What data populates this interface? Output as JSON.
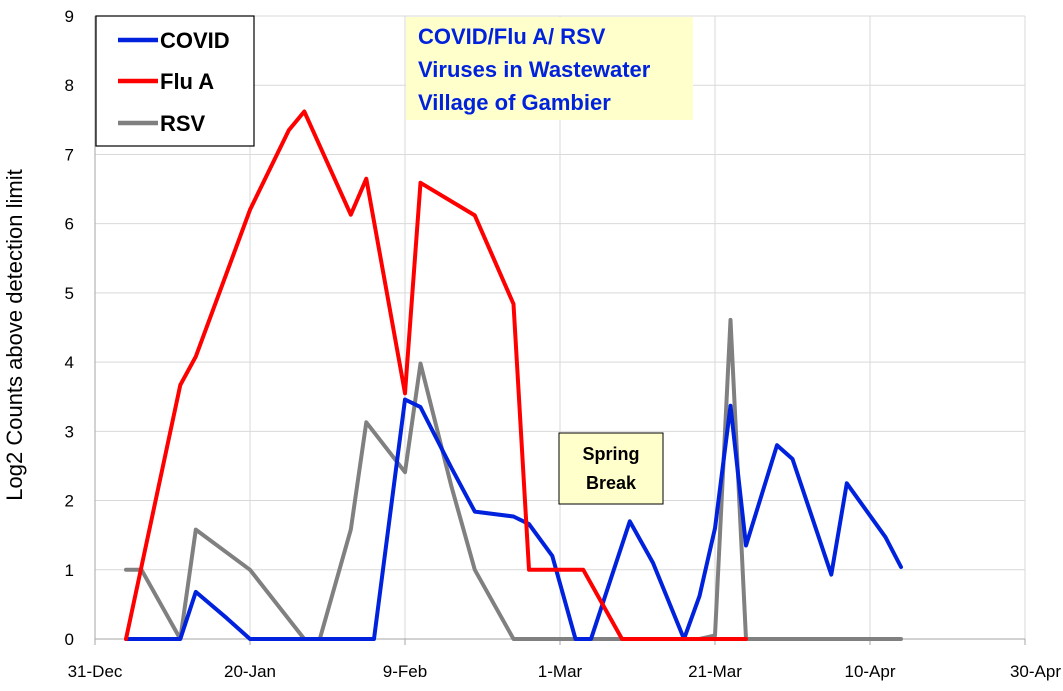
{
  "chart_data": {
    "type": "line",
    "title_lines": [
      "COVID/Flu A/ RSV",
      "Viruses in Wastewater",
      "Village of Gambier"
    ],
    "ylabel": "Log2 Counts above detection limit",
    "xlabel": "",
    "ylim": [
      0,
      9
    ],
    "xlim_days": [
      0,
      120
    ],
    "xticks": [
      {
        "day": 0,
        "label": "31-Dec"
      },
      {
        "day": 20,
        "label": "20-Jan"
      },
      {
        "day": 40,
        "label": "9-Feb"
      },
      {
        "day": 60,
        "label": "1-Mar"
      },
      {
        "day": 80,
        "label": "21-Mar"
      },
      {
        "day": 100,
        "label": "10-Apr"
      },
      {
        "day": 120,
        "label": "30-Apr"
      }
    ],
    "yticks": [
      "0",
      "1",
      "2",
      "3",
      "4",
      "5",
      "6",
      "7",
      "8",
      "9"
    ],
    "grid": true,
    "legend_position": "top-left",
    "annotation": {
      "lines": [
        "Spring",
        "Break"
      ]
    },
    "series": [
      {
        "name": "COVID",
        "color": "#0022dd",
        "points": [
          [
            4,
            0
          ],
          [
            7,
            0
          ],
          [
            11,
            0
          ],
          [
            13,
            0.68
          ],
          [
            17,
            0.3
          ],
          [
            20,
            0
          ],
          [
            24,
            0
          ],
          [
            28,
            0
          ],
          [
            31,
            0
          ],
          [
            35,
            0
          ],
          [
            36,
            0
          ],
          [
            40,
            3.46
          ],
          [
            42,
            3.35
          ],
          [
            46,
            2.47
          ],
          [
            49,
            1.84
          ],
          [
            54,
            1.77
          ],
          [
            56,
            1.66
          ],
          [
            59,
            1.2
          ],
          [
            62,
            0
          ],
          [
            64,
            0
          ],
          [
            69,
            1.7
          ],
          [
            72,
            1.1
          ],
          [
            76,
            0
          ],
          [
            78,
            0.62
          ],
          [
            80,
            1.6
          ],
          [
            82,
            3.37
          ],
          [
            84,
            1.35
          ],
          [
            88,
            2.8
          ],
          [
            90,
            2.6
          ],
          [
            95,
            0.93
          ],
          [
            97,
            2.25
          ],
          [
            102,
            1.47
          ],
          [
            104,
            1.04
          ]
        ]
      },
      {
        "name": "Flu A",
        "color": "#ff0000",
        "points": [
          [
            4,
            0
          ],
          [
            11,
            3.67
          ],
          [
            13,
            4.08
          ],
          [
            20,
            6.2
          ],
          [
            25,
            7.35
          ],
          [
            27,
            7.62
          ],
          [
            33,
            6.13
          ],
          [
            35,
            6.65
          ],
          [
            40,
            3.55
          ],
          [
            42,
            6.59
          ],
          [
            49,
            6.12
          ],
          [
            54,
            4.84
          ],
          [
            56,
            1.0
          ],
          [
            59,
            1.0
          ],
          [
            63,
            1.0
          ],
          [
            68,
            0
          ],
          [
            73,
            0
          ],
          [
            78,
            0
          ],
          [
            80,
            0
          ],
          [
            84,
            0
          ]
        ]
      },
      {
        "name": "RSV",
        "color": "#808080",
        "points": [
          [
            4,
            1.0
          ],
          [
            6,
            1.0
          ],
          [
            11,
            0
          ],
          [
            13,
            1.58
          ],
          [
            20,
            1.0
          ],
          [
            27,
            0
          ],
          [
            29,
            0
          ],
          [
            33,
            1.58
          ],
          [
            35,
            3.13
          ],
          [
            40,
            2.41
          ],
          [
            42,
            3.98
          ],
          [
            46,
            2.2
          ],
          [
            49,
            1.0
          ],
          [
            54,
            0
          ],
          [
            60,
            0
          ],
          [
            70,
            0
          ],
          [
            78,
            0
          ],
          [
            80,
            0.05
          ],
          [
            82,
            4.61
          ],
          [
            84,
            0
          ],
          [
            90,
            0
          ],
          [
            100,
            0
          ],
          [
            104,
            0
          ]
        ]
      }
    ]
  }
}
